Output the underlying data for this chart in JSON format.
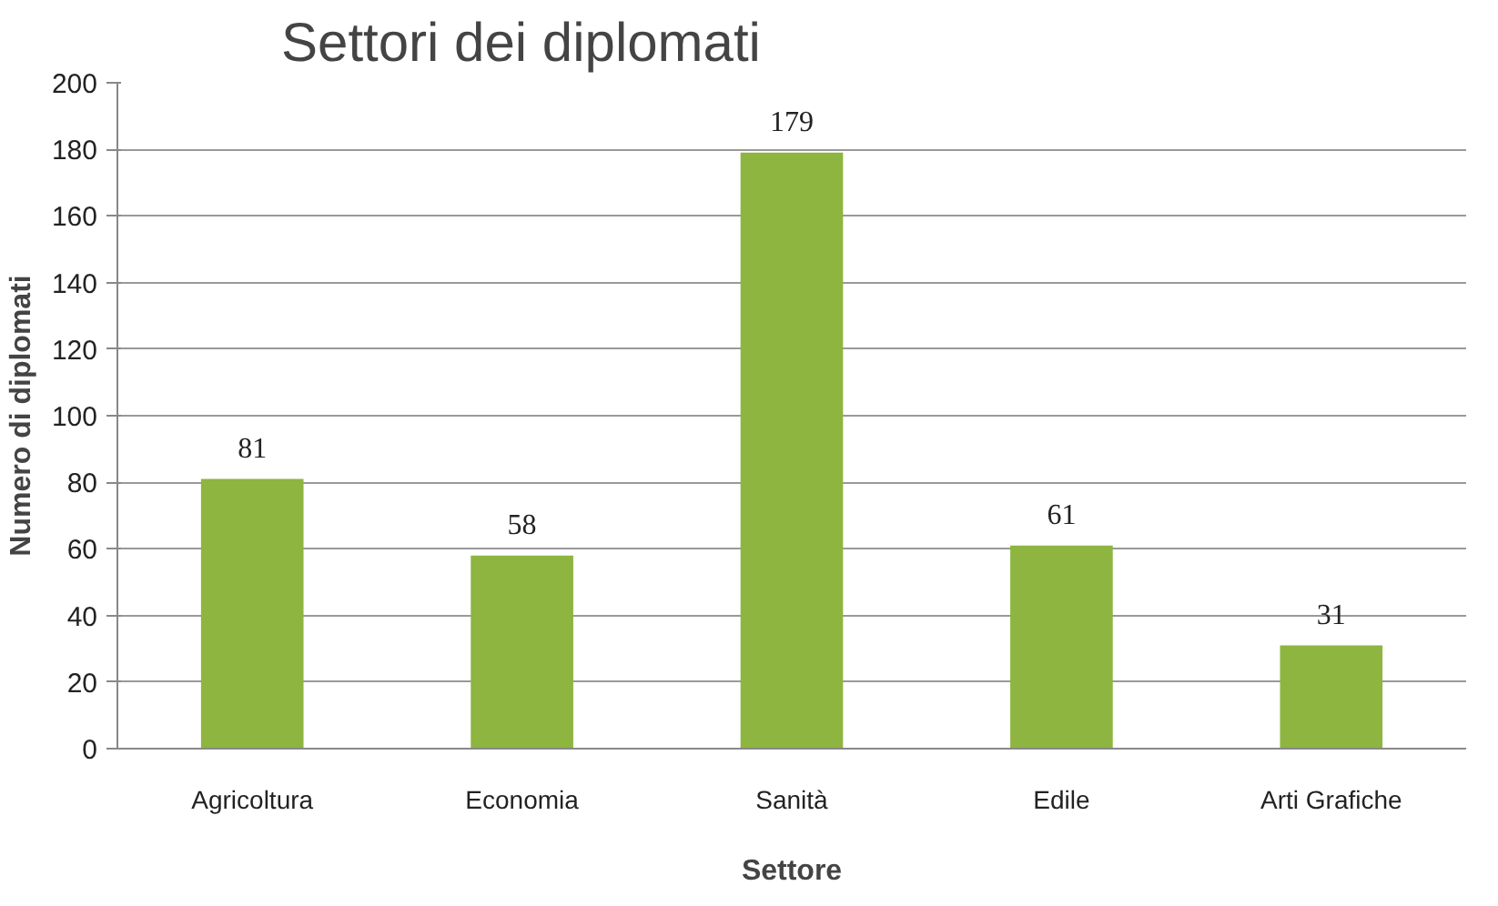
{
  "chart_data": {
    "type": "bar",
    "title": "Settori dei diplomati",
    "xlabel": "Settore",
    "ylabel": "Numero di diplomati",
    "categories": [
      "Agricoltura",
      "Economia",
      "Sanità",
      "Edile",
      "Arti Grafiche"
    ],
    "values": [
      81,
      58,
      179,
      61,
      31
    ],
    "color": "#8db540",
    "ylim": [
      0,
      200
    ],
    "yticks": [
      0,
      20,
      40,
      60,
      80,
      100,
      120,
      140,
      160,
      180,
      200
    ],
    "grid": "y",
    "data_labels": true
  }
}
